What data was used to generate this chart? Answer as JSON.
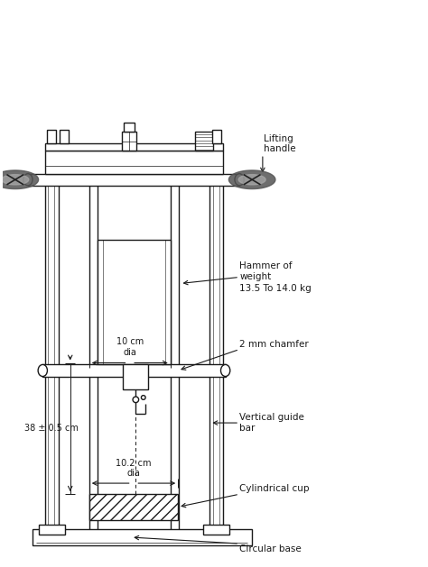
{
  "bg_color": "#ffffff",
  "line_color": "#1a1a1a",
  "fig_width": 4.74,
  "fig_height": 6.29,
  "dpi": 100,
  "labels": {
    "lifting_handle": "Lifting\nhandle",
    "hammer": "Hammer of\nweight\n13.5 To 14.0 kg",
    "chamfer": "2 mm chamfer",
    "guide_bar": "Vertical guide\nbar",
    "cylindrical_cup": "Cylindrical cup",
    "circular_base": "Circular base",
    "dia_10": "10 cm\ndia",
    "dia_102": "10.2 cm\ndia",
    "height_38": "38 ± 0.5 cm"
  }
}
